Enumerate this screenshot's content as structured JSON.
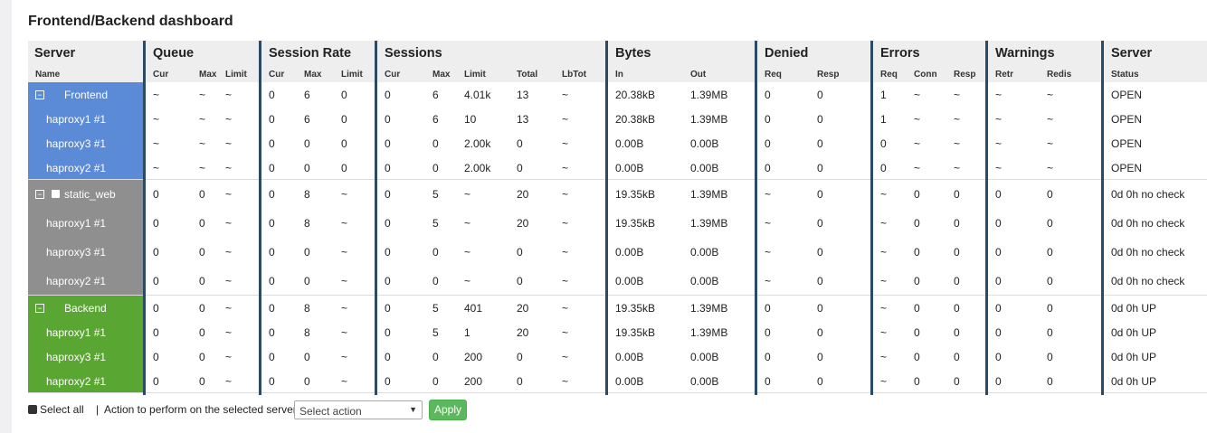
{
  "title": "Frontend/Backend dashboard",
  "colors": {
    "frontend": "#5b8ad6",
    "static_web": "#8f8f8f",
    "backend": "#5aa632",
    "separator": "#2b4a66",
    "apply_button": "#5cb85c"
  },
  "header": {
    "groups": [
      "Server",
      "Queue",
      "Session Rate",
      "Sessions",
      "Bytes",
      "Denied",
      "Errors",
      "Warnings",
      "Server"
    ],
    "subs": [
      "Name",
      "Cur",
      "Max",
      "Limit",
      "Cur",
      "Max",
      "Limit",
      "Cur",
      "Max",
      "Limit",
      "Total",
      "LbTot",
      "In",
      "Out",
      "Req",
      "Resp",
      "Req",
      "Conn",
      "Resp",
      "Retr",
      "Redis",
      "Status"
    ]
  },
  "rows": [
    {
      "group": "frontend",
      "type": "group",
      "name": "Frontend",
      "collapse_icon": "minus-box-icon",
      "values": [
        "~",
        "~",
        "~",
        "0",
        "6",
        "0",
        "0",
        "6",
        "4.01k",
        "13",
        "~",
        "20.38kB",
        "1.39MB",
        "0",
        "0",
        "1",
        "~",
        "~",
        "~",
        "~",
        "OPEN"
      ]
    },
    {
      "group": "frontend",
      "type": "server",
      "name": "haproxy1 #1",
      "values": [
        "~",
        "~",
        "~",
        "0",
        "6",
        "0",
        "0",
        "6",
        "10",
        "13",
        "~",
        "20.38kB",
        "1.39MB",
        "0",
        "0",
        "1",
        "~",
        "~",
        "~",
        "~",
        "OPEN"
      ]
    },
    {
      "group": "frontend",
      "type": "server",
      "name": "haproxy3 #1",
      "values": [
        "~",
        "~",
        "~",
        "0",
        "0",
        "0",
        "0",
        "0",
        "2.00k",
        "0",
        "~",
        "0.00B",
        "0.00B",
        "0",
        "0",
        "0",
        "~",
        "~",
        "~",
        "~",
        "OPEN"
      ]
    },
    {
      "group": "frontend",
      "type": "server",
      "name": "haproxy2 #1",
      "values": [
        "~",
        "~",
        "~",
        "0",
        "0",
        "0",
        "0",
        "0",
        "2.00k",
        "0",
        "~",
        "0.00B",
        "0.00B",
        "0",
        "0",
        "0",
        "~",
        "~",
        "~",
        "~",
        "OPEN"
      ]
    },
    {
      "group": "static_web",
      "type": "group",
      "name": "static_web",
      "collapse_icon": "minus-box-icon",
      "checkbox": true,
      "values": [
        "0",
        "0",
        "~",
        "0",
        "8",
        "~",
        "0",
        "5",
        "~",
        "20",
        "~",
        "19.35kB",
        "1.39MB",
        "~",
        "0",
        "~",
        "0",
        "0",
        "0",
        "0",
        "0d 0h no check"
      ]
    },
    {
      "group": "static_web",
      "type": "server",
      "name": "haproxy1 #1",
      "values": [
        "0",
        "0",
        "~",
        "0",
        "8",
        "~",
        "0",
        "5",
        "~",
        "20",
        "~",
        "19.35kB",
        "1.39MB",
        "~",
        "0",
        "~",
        "0",
        "0",
        "0",
        "0",
        "0d 0h no check"
      ]
    },
    {
      "group": "static_web",
      "type": "server",
      "name": "haproxy3 #1",
      "values": [
        "0",
        "0",
        "~",
        "0",
        "0",
        "~",
        "0",
        "0",
        "~",
        "0",
        "~",
        "0.00B",
        "0.00B",
        "~",
        "0",
        "~",
        "0",
        "0",
        "0",
        "0",
        "0d 0h no check"
      ]
    },
    {
      "group": "static_web",
      "type": "server",
      "name": "haproxy2 #1",
      "values": [
        "0",
        "0",
        "~",
        "0",
        "0",
        "~",
        "0",
        "0",
        "~",
        "0",
        "~",
        "0.00B",
        "0.00B",
        "~",
        "0",
        "~",
        "0",
        "0",
        "0",
        "0",
        "0d 0h no check"
      ]
    },
    {
      "group": "backend",
      "type": "group",
      "name": "Backend",
      "collapse_icon": "minus-box-icon",
      "values": [
        "0",
        "0",
        "~",
        "0",
        "8",
        "~",
        "0",
        "5",
        "401",
        "20",
        "~",
        "19.35kB",
        "1.39MB",
        "0",
        "0",
        "~",
        "0",
        "0",
        "0",
        "0",
        "0d 0h UP"
      ]
    },
    {
      "group": "backend",
      "type": "server",
      "name": "haproxy1 #1",
      "values": [
        "0",
        "0",
        "~",
        "0",
        "8",
        "~",
        "0",
        "5",
        "1",
        "20",
        "~",
        "19.35kB",
        "1.39MB",
        "0",
        "0",
        "~",
        "0",
        "0",
        "0",
        "0",
        "0d 0h UP"
      ]
    },
    {
      "group": "backend",
      "type": "server",
      "name": "haproxy3 #1",
      "values": [
        "0",
        "0",
        "~",
        "0",
        "0",
        "~",
        "0",
        "0",
        "200",
        "0",
        "~",
        "0.00B",
        "0.00B",
        "0",
        "0",
        "~",
        "0",
        "0",
        "0",
        "0",
        "0d 0h UP"
      ]
    },
    {
      "group": "backend",
      "type": "server",
      "name": "haproxy2 #1",
      "values": [
        "0",
        "0",
        "~",
        "0",
        "0",
        "~",
        "0",
        "0",
        "200",
        "0",
        "~",
        "0.00B",
        "0.00B",
        "0",
        "0",
        "~",
        "0",
        "0",
        "0",
        "0",
        "0d 0h UP"
      ]
    }
  ],
  "footer": {
    "select_all": "Select all",
    "separator": "|",
    "action_label": "Action to perform on the selected servers:",
    "select_value": "Select action",
    "apply": "Apply"
  }
}
